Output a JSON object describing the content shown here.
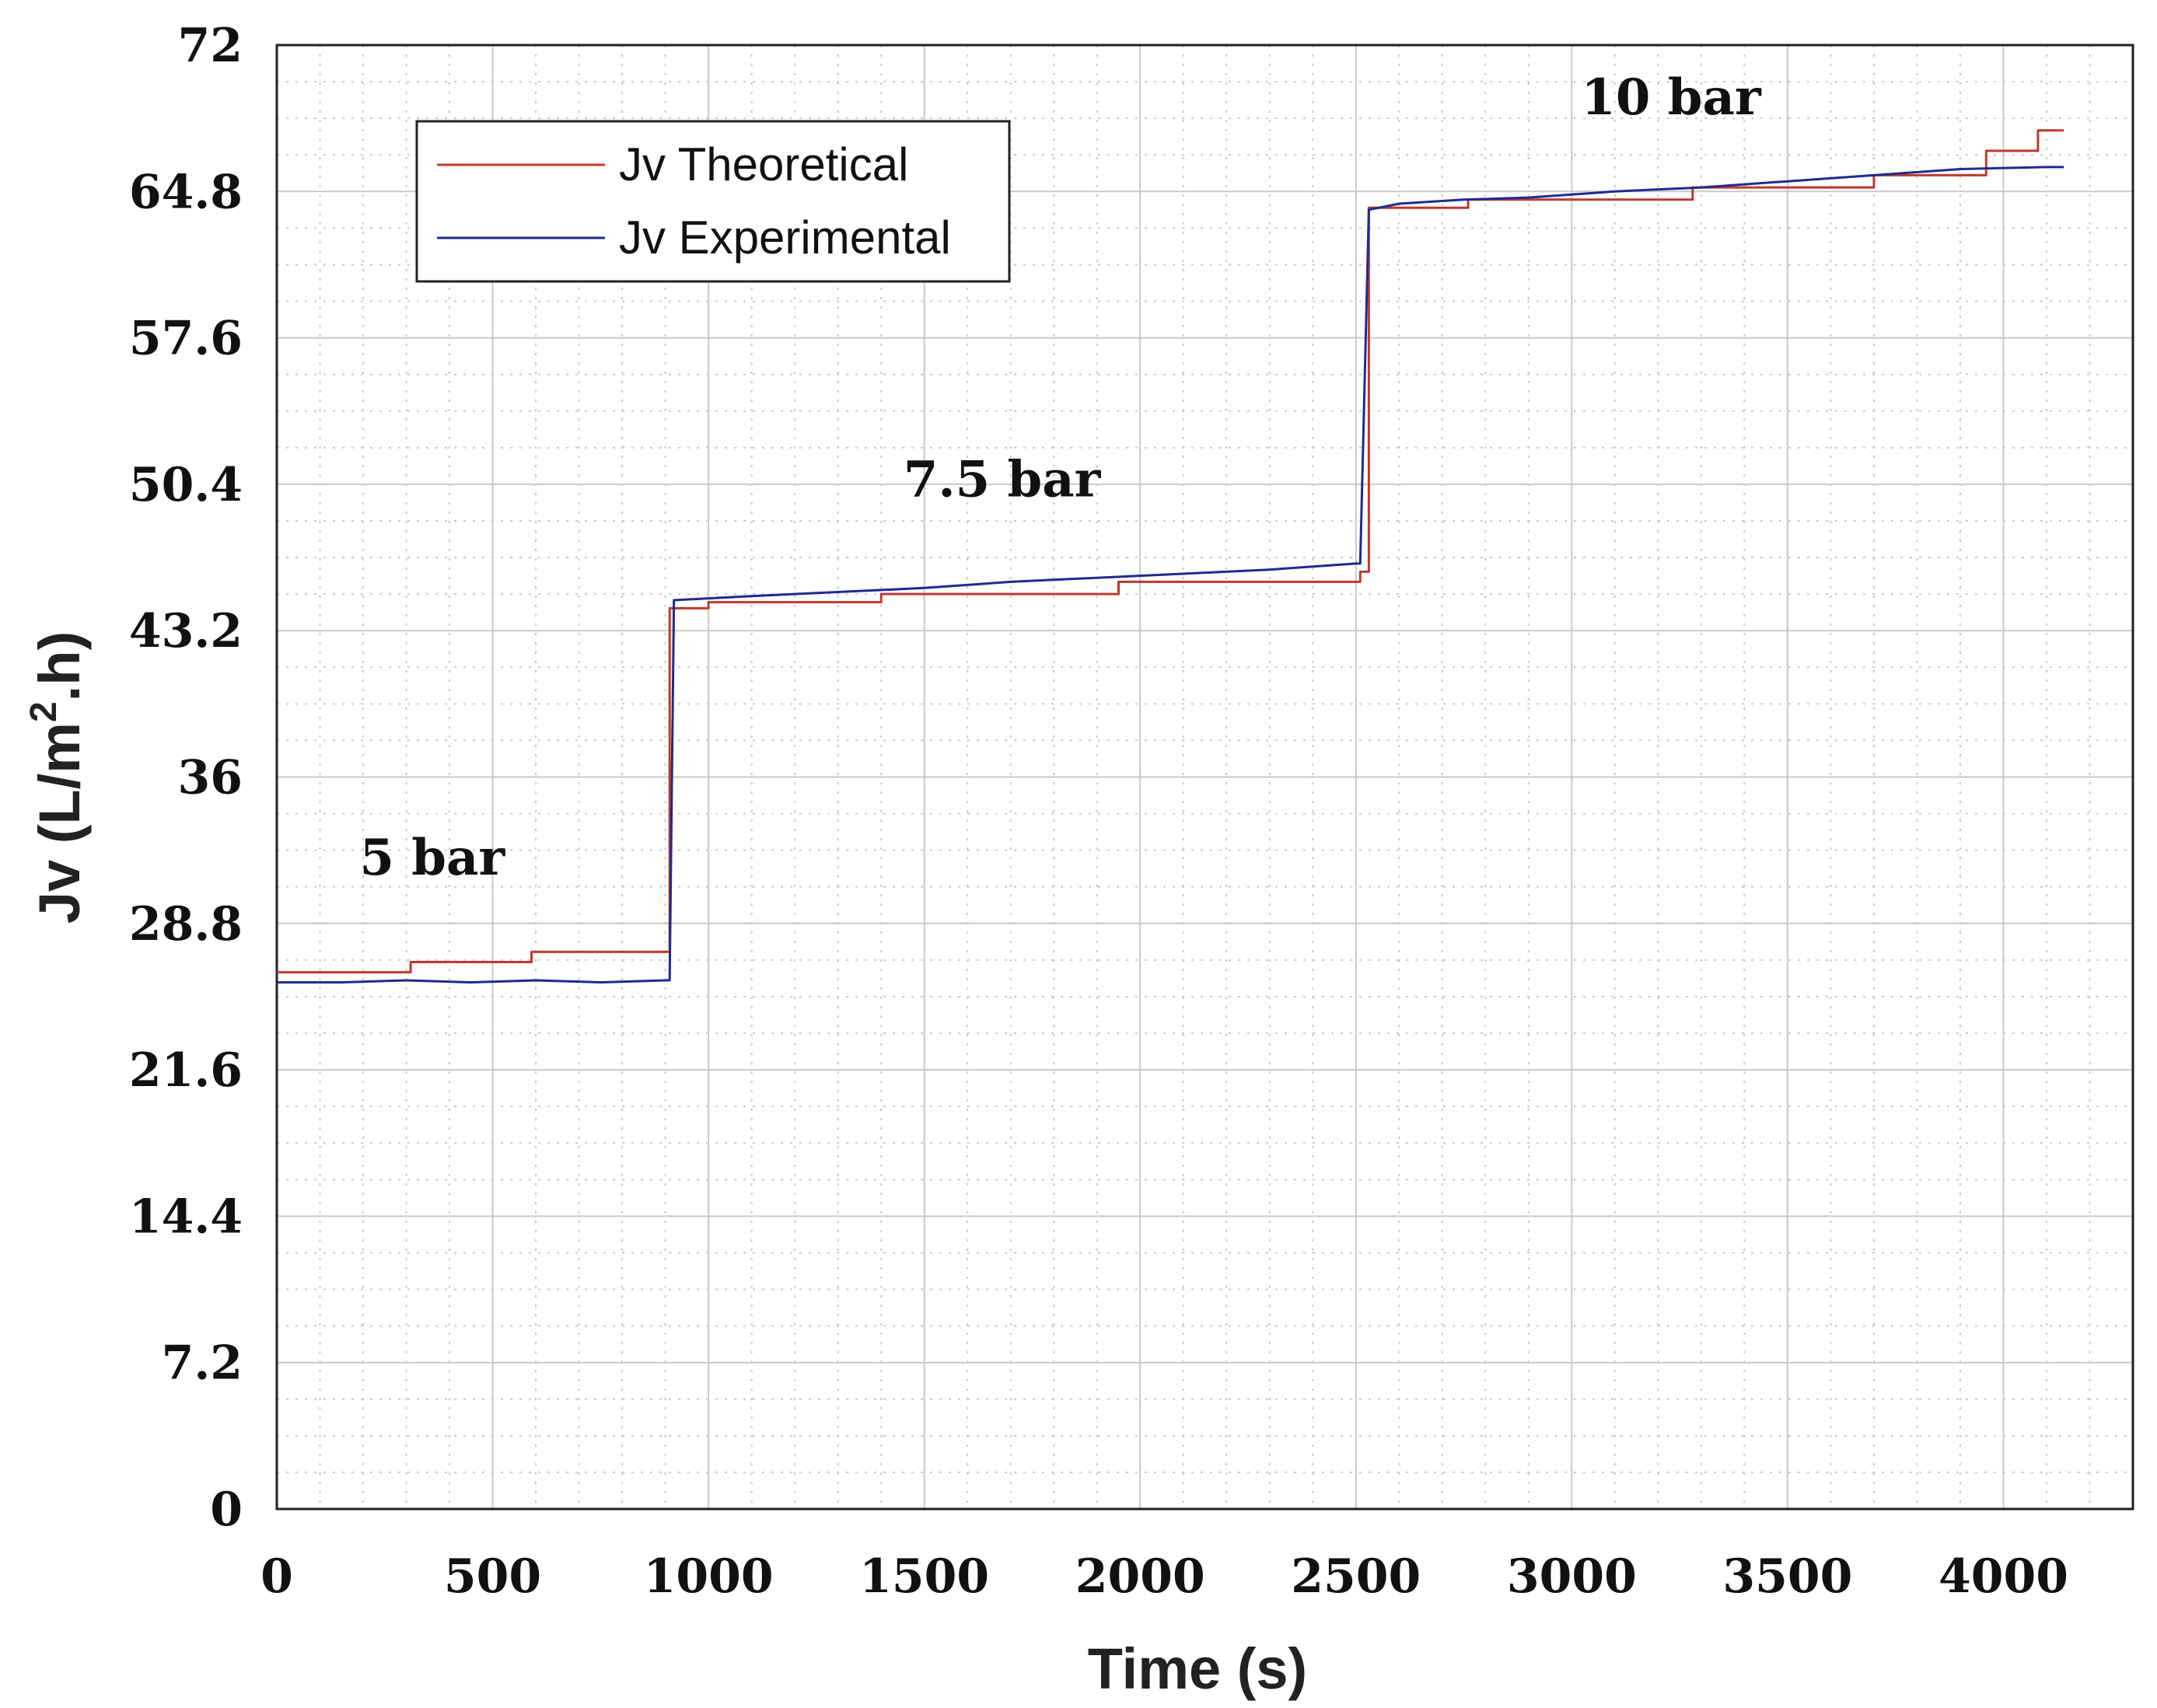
{
  "chart_data": {
    "type": "line",
    "title": "",
    "xlabel": "Time (s)",
    "ylabel": "Jv (L/m².h)",
    "ylabel_parts": {
      "main": "Jv (L/m",
      "sup": "2",
      "tail": ".h)"
    },
    "xlim": [
      0,
      4300
    ],
    "ylim": [
      0,
      72
    ],
    "x_ticks": [
      0,
      500,
      1000,
      1500,
      2000,
      2500,
      3000,
      3500,
      4000
    ],
    "x_tick_labels": [
      "0",
      "500",
      "1000",
      "1500",
      "2000",
      "2500",
      "3000",
      "3500",
      "4000"
    ],
    "y_ticks": [
      0,
      7.2,
      14.4,
      21.6,
      28.8,
      36,
      43.2,
      50.4,
      57.6,
      64.8,
      72
    ],
    "y_tick_labels": [
      "0",
      "7.2",
      "14.4",
      "21.6",
      "28.8",
      "36",
      "43.2",
      "50.4",
      "57.6",
      "64.8",
      "72"
    ],
    "grid": true,
    "legend_position": "top-left",
    "annotations": [
      {
        "text": "5 bar",
        "x": 360,
        "y": 31.2
      },
      {
        "text": "7.5 bar",
        "x": 1680,
        "y": 49.8
      },
      {
        "text": "10 bar",
        "x": 3230,
        "y": 68.6
      }
    ],
    "series": [
      {
        "name": "Jv Theoretical",
        "color": "#c0392b",
        "x": [
          0,
          310,
          310,
          590,
          590,
          910,
          910,
          1000,
          1000,
          1400,
          1400,
          1950,
          1950,
          2510,
          2510,
          2530,
          2530,
          2760,
          2760,
          3280,
          3280,
          3700,
          3700,
          3960,
          3960,
          4080,
          4080,
          4140
        ],
        "y": [
          26.4,
          26.4,
          26.9,
          26.9,
          27.4,
          27.4,
          44.3,
          44.3,
          44.6,
          44.6,
          45.0,
          45.0,
          45.6,
          45.6,
          46.1,
          46.1,
          64.0,
          64.0,
          64.4,
          64.4,
          65.0,
          65.0,
          65.6,
          65.6,
          66.8,
          66.8,
          67.8,
          67.8
        ]
      },
      {
        "name": "Jv Experimental",
        "color": "#1f2a8f",
        "x": [
          0,
          150,
          300,
          450,
          600,
          750,
          900,
          910,
          920,
          1100,
          1300,
          1500,
          1700,
          1900,
          2100,
          2300,
          2500,
          2510,
          2530,
          2600,
          2750,
          2900,
          3100,
          3300,
          3500,
          3700,
          3900,
          4100,
          4140
        ],
        "y": [
          25.9,
          25.9,
          26.0,
          25.9,
          26.0,
          25.9,
          26.0,
          26.0,
          44.7,
          44.9,
          45.1,
          45.3,
          45.6,
          45.8,
          46.0,
          46.2,
          46.5,
          46.5,
          63.9,
          64.2,
          64.4,
          64.5,
          64.8,
          65.0,
          65.3,
          65.6,
          65.9,
          66.0,
          66.0
        ]
      }
    ]
  }
}
